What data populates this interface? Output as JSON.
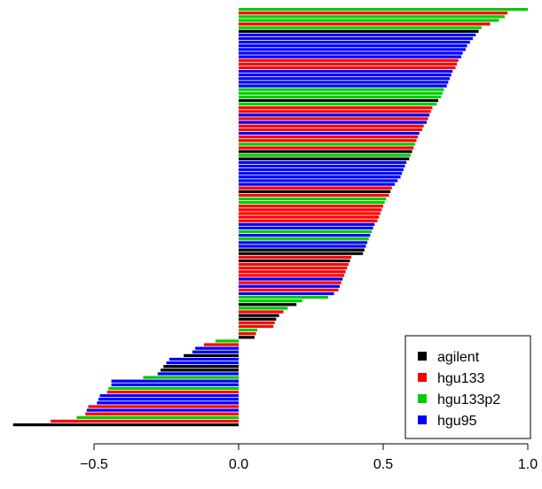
{
  "chart_data": {
    "type": "bar",
    "orientation": "horizontal",
    "title": "",
    "xlabel": "",
    "ylabel": "",
    "xlim": [
      -0.8,
      1.0
    ],
    "x_ticks": [
      -0.5,
      0.0,
      0.5,
      1.0
    ],
    "x_tick_labels": [
      "−0.5",
      "0.0",
      "0.5",
      "1.0"
    ],
    "grid": false,
    "legend_position": "bottom-right",
    "legend": [
      {
        "name": "agilent",
        "color": "#000000"
      },
      {
        "name": "hgu133",
        "color": "#ff0000"
      },
      {
        "name": "hgu133p2",
        "color": "#00cd00"
      },
      {
        "name": "hgu95",
        "color": "#0000ff"
      }
    ],
    "bars": [
      {
        "series": "hgu133p2",
        "value": 1.0
      },
      {
        "series": "hgu133",
        "value": 0.93
      },
      {
        "series": "hgu133p2",
        "value": 0.92
      },
      {
        "series": "hgu133p2",
        "value": 0.9
      },
      {
        "series": "hgu133",
        "value": 0.87
      },
      {
        "series": "hgu133p2",
        "value": 0.84
      },
      {
        "series": "agilent",
        "value": 0.83
      },
      {
        "series": "hgu95",
        "value": 0.82
      },
      {
        "series": "hgu95",
        "value": 0.81
      },
      {
        "series": "hgu95",
        "value": 0.8
      },
      {
        "series": "hgu95",
        "value": 0.79
      },
      {
        "series": "hgu95",
        "value": 0.785
      },
      {
        "series": "hgu95",
        "value": 0.775
      },
      {
        "series": "hgu95",
        "value": 0.77
      },
      {
        "series": "hgu133",
        "value": 0.76
      },
      {
        "series": "hgu133",
        "value": 0.755
      },
      {
        "series": "hgu133",
        "value": 0.75
      },
      {
        "series": "hgu95",
        "value": 0.74
      },
      {
        "series": "hgu95",
        "value": 0.735
      },
      {
        "series": "hgu95",
        "value": 0.73
      },
      {
        "series": "hgu95",
        "value": 0.725
      },
      {
        "series": "hgu95",
        "value": 0.72
      },
      {
        "series": "hgu133p2",
        "value": 0.71
      },
      {
        "series": "hgu133p2",
        "value": 0.705
      },
      {
        "series": "hgu133p2",
        "value": 0.7
      },
      {
        "series": "agilent",
        "value": 0.69
      },
      {
        "series": "hgu133p2",
        "value": 0.685
      },
      {
        "series": "hgu133",
        "value": 0.67
      },
      {
        "series": "hgu133",
        "value": 0.665
      },
      {
        "series": "hgu95",
        "value": 0.66
      },
      {
        "series": "hgu133",
        "value": 0.655
      },
      {
        "series": "hgu95",
        "value": 0.65
      },
      {
        "series": "hgu133",
        "value": 0.64
      },
      {
        "series": "hgu133",
        "value": 0.635
      },
      {
        "series": "hgu95",
        "value": 0.625
      },
      {
        "series": "hgu133",
        "value": 0.62
      },
      {
        "series": "hgu133",
        "value": 0.615
      },
      {
        "series": "hgu133p2",
        "value": 0.61
      },
      {
        "series": "hgu133",
        "value": 0.605
      },
      {
        "series": "agilent",
        "value": 0.6
      },
      {
        "series": "hgu133p2",
        "value": 0.595
      },
      {
        "series": "agilent",
        "value": 0.59
      },
      {
        "series": "hgu95",
        "value": 0.58
      },
      {
        "series": "hgu95",
        "value": 0.575
      },
      {
        "series": "hgu95",
        "value": 0.57
      },
      {
        "series": "hgu95",
        "value": 0.565
      },
      {
        "series": "hgu95",
        "value": 0.56
      },
      {
        "series": "hgu95",
        "value": 0.55
      },
      {
        "series": "hgu95",
        "value": 0.54
      },
      {
        "series": "hgu133",
        "value": 0.53
      },
      {
        "series": "agilent",
        "value": 0.525
      },
      {
        "series": "hgu133",
        "value": 0.52
      },
      {
        "series": "hgu133p2",
        "value": 0.51
      },
      {
        "series": "hgu133p2",
        "value": 0.505
      },
      {
        "series": "hgu133",
        "value": 0.5
      },
      {
        "series": "hgu133",
        "value": 0.495
      },
      {
        "series": "hgu133",
        "value": 0.49
      },
      {
        "series": "hgu133",
        "value": 0.485
      },
      {
        "series": "hgu133",
        "value": 0.48
      },
      {
        "series": "hgu95",
        "value": 0.47
      },
      {
        "series": "hgu95",
        "value": 0.465
      },
      {
        "series": "hgu133p2",
        "value": 0.46
      },
      {
        "series": "hgu95",
        "value": 0.455
      },
      {
        "series": "hgu133p2",
        "value": 0.45
      },
      {
        "series": "hgu95",
        "value": 0.445
      },
      {
        "series": "hgu95",
        "value": 0.44
      },
      {
        "series": "agilent",
        "value": 0.435
      },
      {
        "series": "agilent",
        "value": 0.43
      },
      {
        "series": "hgu133",
        "value": 0.39
      },
      {
        "series": "agilent",
        "value": 0.385
      },
      {
        "series": "hgu133",
        "value": 0.38
      },
      {
        "series": "hgu133",
        "value": 0.375
      },
      {
        "series": "hgu133",
        "value": 0.37
      },
      {
        "series": "hgu133",
        "value": 0.365
      },
      {
        "series": "hgu95",
        "value": 0.36
      },
      {
        "series": "hgu133",
        "value": 0.355
      },
      {
        "series": "hgu95",
        "value": 0.35
      },
      {
        "series": "hgu133",
        "value": 0.345
      },
      {
        "series": "hgu95",
        "value": 0.33
      },
      {
        "series": "hgu133p2",
        "value": 0.31
      },
      {
        "series": "hgu133p2",
        "value": 0.22
      },
      {
        "series": "agilent",
        "value": 0.2
      },
      {
        "series": "hgu133p2",
        "value": 0.17
      },
      {
        "series": "hgu133",
        "value": 0.155
      },
      {
        "series": "agilent",
        "value": 0.14
      },
      {
        "series": "agilent",
        "value": 0.13
      },
      {
        "series": "hgu133",
        "value": 0.125
      },
      {
        "series": "hgu133",
        "value": 0.12
      },
      {
        "series": "hgu133p2",
        "value": 0.065
      },
      {
        "series": "hgu133",
        "value": 0.06
      },
      {
        "series": "agilent",
        "value": 0.055
      },
      {
        "series": "hgu133p2",
        "value": -0.08
      },
      {
        "series": "hgu133",
        "value": -0.12
      },
      {
        "series": "hgu95",
        "value": -0.15
      },
      {
        "series": "hgu95",
        "value": -0.16
      },
      {
        "series": "agilent",
        "value": -0.19
      },
      {
        "series": "hgu95",
        "value": -0.24
      },
      {
        "series": "hgu95",
        "value": -0.25
      },
      {
        "series": "agilent",
        "value": -0.26
      },
      {
        "series": "agilent",
        "value": -0.27
      },
      {
        "series": "hgu95",
        "value": -0.28
      },
      {
        "series": "hgu133p2",
        "value": -0.33
      },
      {
        "series": "hgu95",
        "value": -0.44
      },
      {
        "series": "hgu95",
        "value": -0.44
      },
      {
        "series": "hgu133p2",
        "value": -0.45
      },
      {
        "series": "hgu133",
        "value": -0.455
      },
      {
        "series": "hgu95",
        "value": -0.48
      },
      {
        "series": "hgu95",
        "value": -0.485
      },
      {
        "series": "hgu95",
        "value": -0.49
      },
      {
        "series": "hgu133",
        "value": -0.52
      },
      {
        "series": "hgu95",
        "value": -0.525
      },
      {
        "series": "hgu133",
        "value": -0.53
      },
      {
        "series": "hgu133p2",
        "value": -0.56
      },
      {
        "series": "hgu133",
        "value": -0.65
      },
      {
        "series": "agilent",
        "value": -0.78
      }
    ]
  }
}
